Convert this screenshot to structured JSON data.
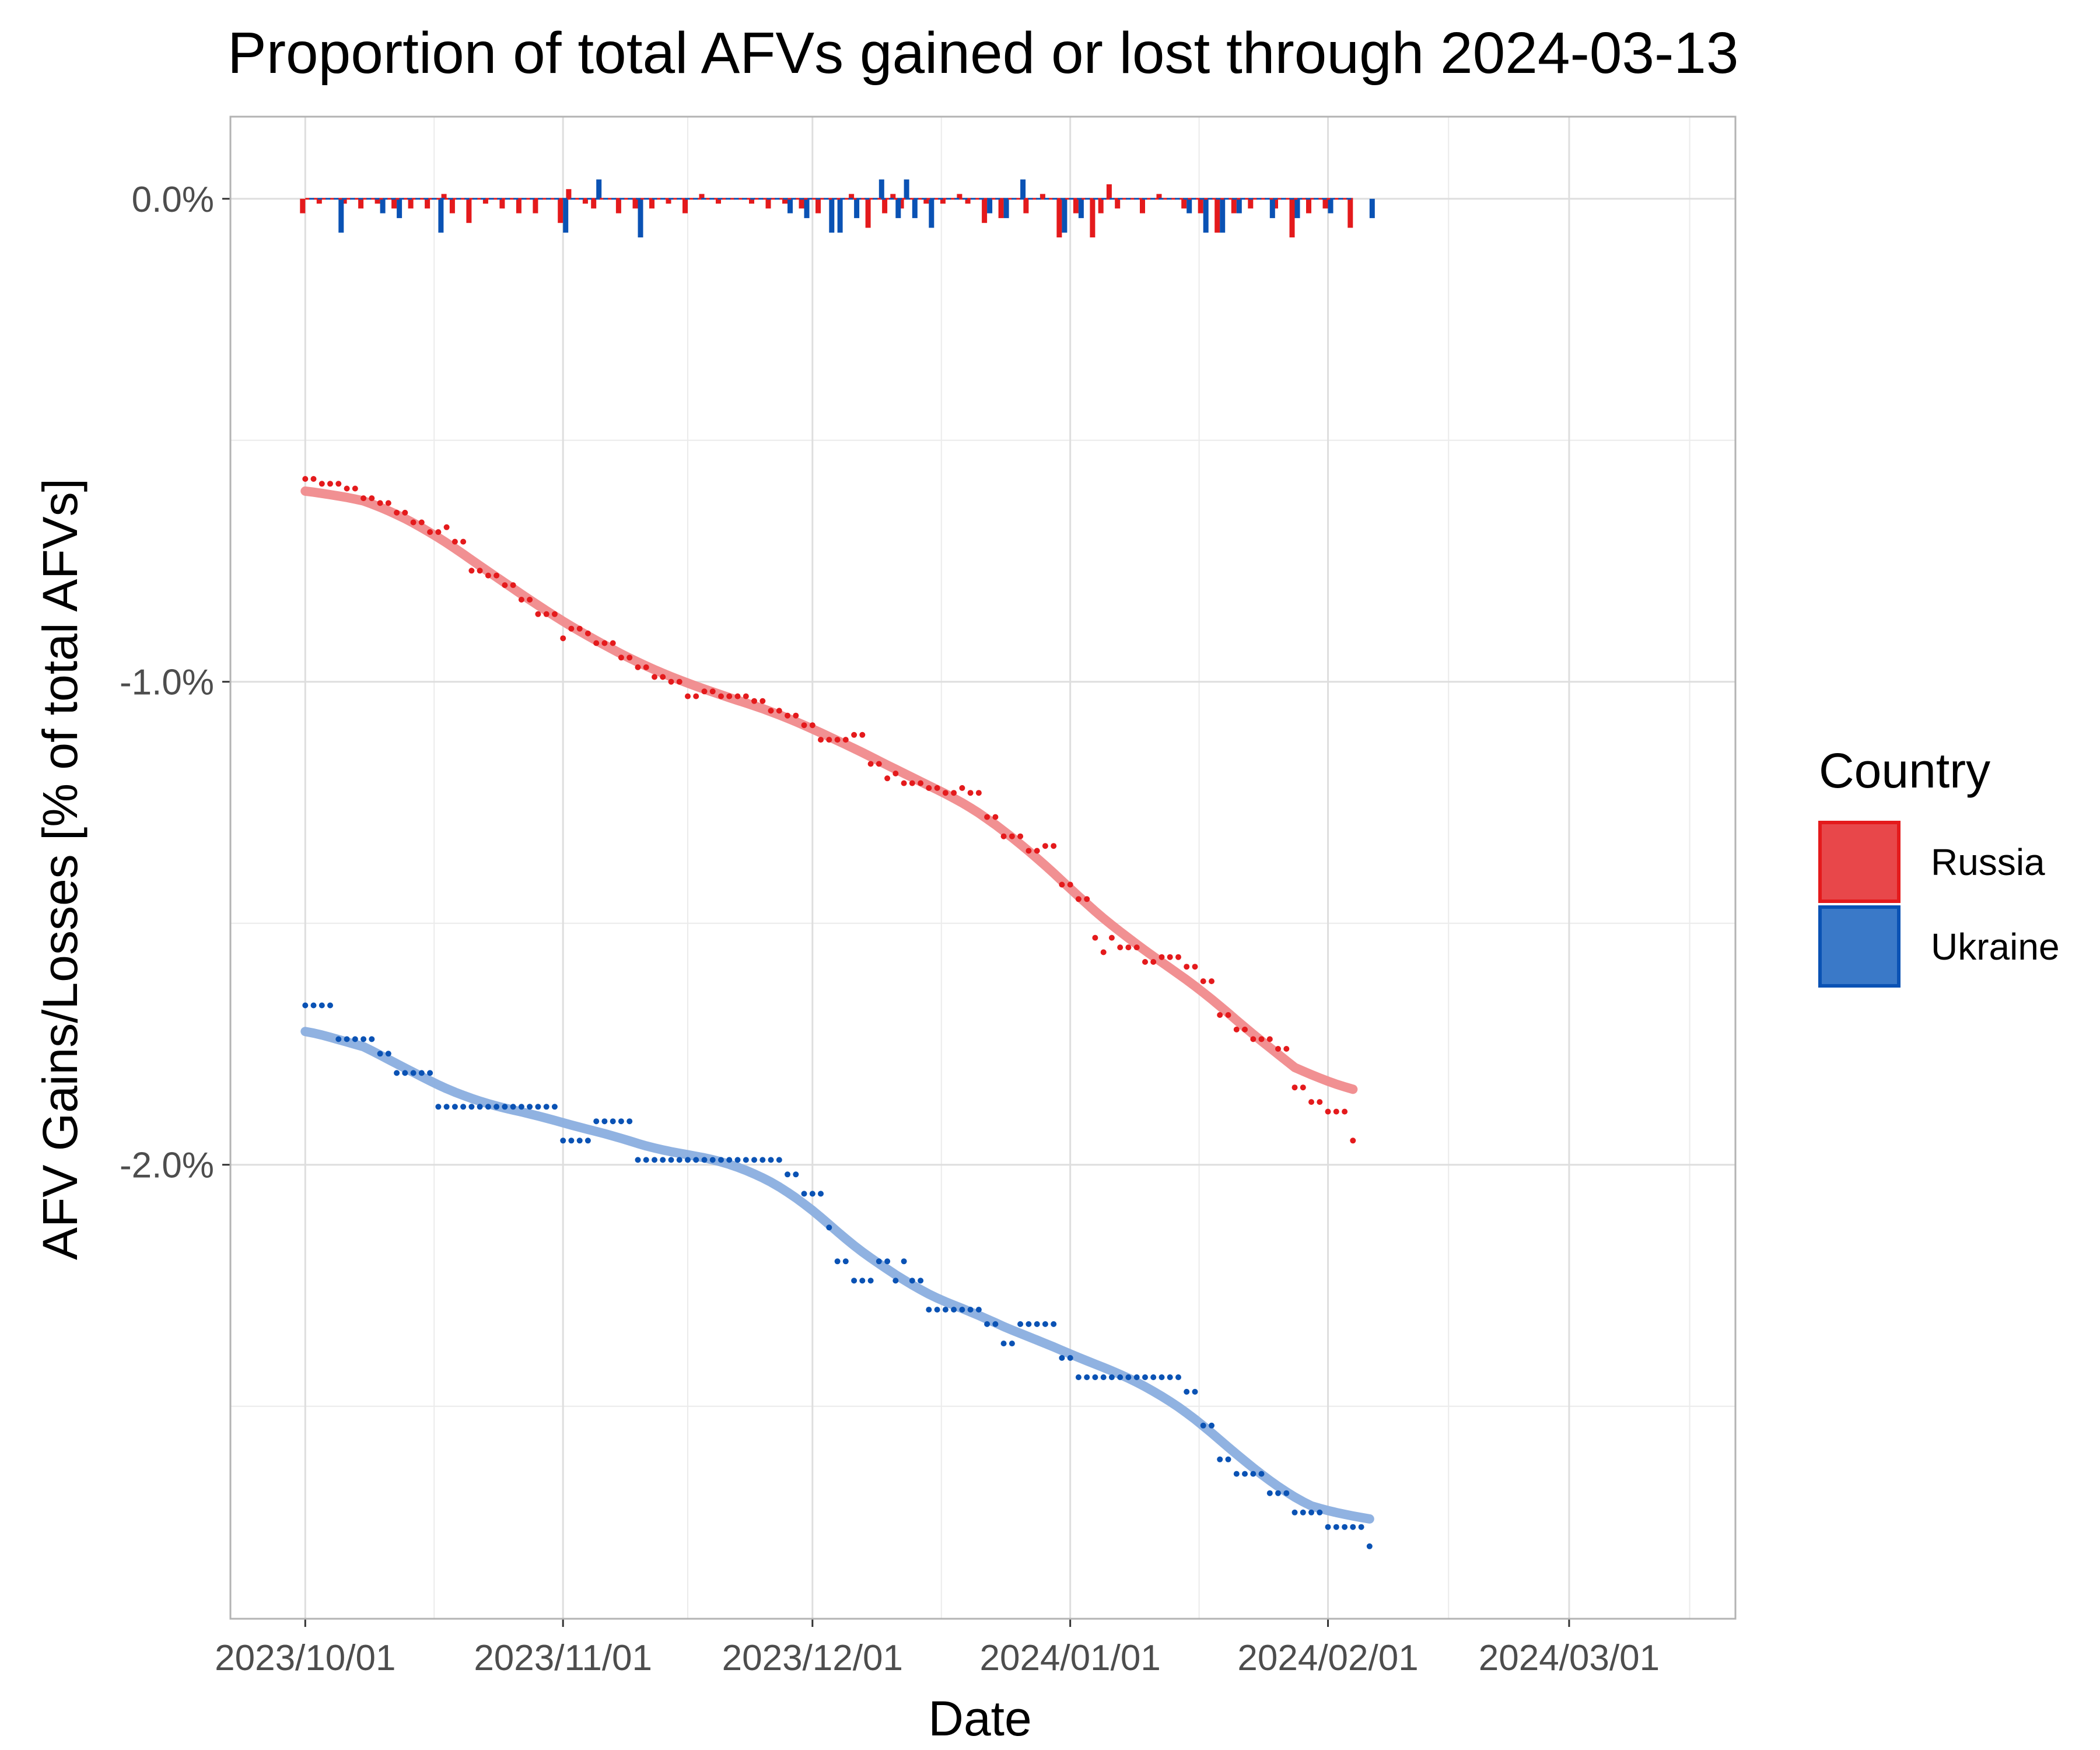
{
  "chart_data": {
    "type": "line",
    "title": "Proportion of total AFVs gained or lost through 2024-03-13",
    "xlabel": "Date",
    "ylabel": "AFV Gains/Losses [% of total AFVs]",
    "x_range": [
      "2023-09-22",
      "2024-03-21"
    ],
    "ylim": [
      -2.94,
      0.17
    ],
    "y_ticks": [
      0,
      -1,
      -2
    ],
    "y_tick_labels": [
      "0.0%",
      "-1.0%",
      "-2.0%"
    ],
    "x_ticks": [
      "2023-10-01",
      "2023-11-01",
      "2023-12-01",
      "2024-01-01",
      "2024-02-01",
      "2024-03-01"
    ],
    "x_tick_labels": [
      "2023/10/01",
      "2023/11/01",
      "2023/12/01",
      "2024/01/01",
      "2024/02/01",
      "2024/03/01"
    ],
    "grid": true,
    "legend": {
      "title": "Country",
      "placement": "right"
    },
    "colors": {
      "Russia": "#e41a1c",
      "Ukraine": "#0a52b4",
      "Russia_fill": "#e8474a",
      "Ukraine_fill": "#3a79c8",
      "Russia_smooth": "#f08a8c",
      "Ukraine_smooth": "#8aaedf"
    },
    "start_date": "2023-10-01",
    "series": [
      {
        "name": "Russia",
        "cumulative": [
          -0.58,
          -0.58,
          -0.59,
          -0.59,
          -0.59,
          -0.6,
          -0.6,
          -0.62,
          -0.62,
          -0.63,
          -0.63,
          -0.65,
          -0.65,
          -0.67,
          -0.67,
          -0.69,
          -0.69,
          -0.68,
          -0.71,
          -0.71,
          -0.77,
          -0.77,
          -0.78,
          -0.78,
          -0.8,
          -0.8,
          -0.83,
          -0.83,
          -0.86,
          -0.86,
          -0.86,
          -0.91,
          -0.89,
          -0.89,
          -0.9,
          -0.92,
          -0.92,
          -0.92,
          -0.95,
          -0.95,
          -0.97,
          -0.97,
          -0.99,
          -0.99,
          -1.0,
          -1.0,
          -1.03,
          -1.03,
          -1.02,
          -1.02,
          -1.03,
          -1.03,
          -1.03,
          -1.03,
          -1.04,
          -1.04,
          -1.06,
          -1.06,
          -1.07,
          -1.07,
          -1.09,
          -1.09,
          -1.12,
          -1.12,
          -1.12,
          -1.12,
          -1.11,
          -1.11,
          -1.17,
          -1.17,
          -1.2,
          -1.19,
          -1.21,
          -1.21,
          -1.21,
          -1.22,
          -1.22,
          -1.23,
          -1.23,
          -1.22,
          -1.23,
          -1.23,
          -1.28,
          -1.28,
          -1.32,
          -1.32,
          -1.32,
          -1.35,
          -1.35,
          -1.34,
          -1.34,
          -1.42,
          -1.42,
          -1.45,
          -1.45,
          -1.53,
          -1.56,
          -1.53,
          -1.55,
          -1.55,
          -1.55,
          -1.58,
          -1.58,
          -1.57,
          -1.57,
          -1.57,
          -1.59,
          -1.59,
          -1.62,
          -1.62,
          -1.69,
          -1.69,
          -1.72,
          -1.72,
          -1.74,
          -1.74,
          -1.74,
          -1.76,
          -1.76,
          -1.84,
          -1.84,
          -1.87,
          -1.87,
          -1.89,
          -1.89,
          -1.89,
          -1.95
        ],
        "daily": [
          -0.03,
          0,
          -0.01,
          0,
          0,
          -0.01,
          0,
          -0.02,
          0,
          -0.01,
          0,
          -0.02,
          0,
          -0.02,
          0,
          -0.02,
          0,
          0.01,
          -0.03,
          0,
          -0.05,
          0,
          -0.01,
          0,
          -0.02,
          0,
          -0.03,
          0,
          -0.03,
          0,
          0,
          -0.05,
          0.02,
          0,
          -0.01,
          -0.02,
          0,
          0,
          -0.03,
          0,
          -0.02,
          0,
          -0.02,
          0,
          -0.01,
          0,
          -0.03,
          0,
          0.01,
          0,
          -0.01,
          0,
          0,
          0,
          -0.01,
          0,
          -0.02,
          0,
          -0.01,
          0,
          -0.02,
          0,
          -0.03,
          0,
          0,
          0,
          0.01,
          0,
          -0.06,
          0,
          -0.03,
          0.01,
          -0.02,
          0,
          0,
          -0.01,
          0,
          -0.01,
          0,
          0.01,
          -0.01,
          0,
          -0.05,
          0,
          -0.04,
          0,
          0,
          -0.03,
          0,
          0.01,
          0,
          -0.08,
          0,
          -0.03,
          0,
          -0.08,
          -0.03,
          0.03,
          -0.02,
          0,
          0,
          -0.03,
          0,
          0.01,
          0,
          0,
          -0.02,
          0,
          -0.03,
          0,
          -0.07,
          0,
          -0.03,
          0,
          -0.02,
          0,
          0,
          -0.02,
          0,
          -0.08,
          0,
          -0.03,
          0,
          -0.02,
          0,
          0,
          -0.06
        ]
      },
      {
        "name": "Ukraine",
        "cumulative": [
          -1.67,
          -1.67,
          -1.67,
          -1.67,
          -1.74,
          -1.74,
          -1.74,
          -1.74,
          -1.74,
          -1.77,
          -1.77,
          -1.81,
          -1.81,
          -1.81,
          -1.81,
          -1.81,
          -1.88,
          -1.88,
          -1.88,
          -1.88,
          -1.88,
          -1.88,
          -1.88,
          -1.88,
          -1.88,
          -1.88,
          -1.88,
          -1.88,
          -1.88,
          -1.88,
          -1.88,
          -1.95,
          -1.95,
          -1.95,
          -1.95,
          -1.91,
          -1.91,
          -1.91,
          -1.91,
          -1.91,
          -1.99,
          -1.99,
          -1.99,
          -1.99,
          -1.99,
          -1.99,
          -1.99,
          -1.99,
          -1.99,
          -1.99,
          -1.99,
          -1.99,
          -1.99,
          -1.99,
          -1.99,
          -1.99,
          -1.99,
          -1.99,
          -2.02,
          -2.02,
          -2.06,
          -2.06,
          -2.06,
          -2.13,
          -2.2,
          -2.2,
          -2.24,
          -2.24,
          -2.24,
          -2.2,
          -2.2,
          -2.24,
          -2.2,
          -2.24,
          -2.24,
          -2.3,
          -2.3,
          -2.3,
          -2.3,
          -2.3,
          -2.3,
          -2.3,
          -2.33,
          -2.33,
          -2.37,
          -2.37,
          -2.33,
          -2.33,
          -2.33,
          -2.33,
          -2.33,
          -2.4,
          -2.4,
          -2.44,
          -2.44,
          -2.44,
          -2.44,
          -2.44,
          -2.44,
          -2.44,
          -2.44,
          -2.44,
          -2.44,
          -2.44,
          -2.44,
          -2.44,
          -2.47,
          -2.47,
          -2.54,
          -2.54,
          -2.61,
          -2.61,
          -2.64,
          -2.64,
          -2.64,
          -2.64,
          -2.68,
          -2.68,
          -2.68,
          -2.72,
          -2.72,
          -2.72,
          -2.72,
          -2.75,
          -2.75,
          -2.75,
          -2.75,
          -2.75,
          -2.79
        ],
        "daily": [
          0,
          0,
          0,
          0,
          -0.07,
          0,
          0,
          0,
          0,
          -0.03,
          0,
          -0.04,
          0,
          0,
          0,
          0,
          -0.07,
          0,
          0,
          0,
          0,
          0,
          0,
          0,
          0,
          0,
          0,
          0,
          0,
          0,
          0,
          -0.07,
          0,
          0,
          0,
          0.04,
          0,
          0,
          0,
          0,
          -0.08,
          0,
          0,
          0,
          0,
          0,
          0,
          0,
          0,
          0,
          0,
          0,
          0,
          0,
          0,
          0,
          0,
          0,
          -0.03,
          0,
          -0.04,
          0,
          0,
          -0.07,
          -0.07,
          0,
          -0.04,
          0,
          0,
          0.04,
          0,
          -0.04,
          0.04,
          -0.04,
          0,
          -0.06,
          0,
          0,
          0,
          0,
          0,
          0,
          -0.03,
          0,
          -0.04,
          0,
          0.04,
          0,
          0,
          0,
          0,
          -0.07,
          0,
          -0.04,
          0,
          0,
          0,
          0,
          0,
          0,
          0,
          0,
          0,
          0,
          0,
          0,
          -0.03,
          0,
          -0.07,
          0,
          -0.07,
          0,
          -0.03,
          0,
          0,
          0,
          -0.04,
          0,
          0,
          -0.04,
          0,
          0,
          0,
          -0.03,
          0,
          0,
          0,
          0,
          -0.04
        ]
      }
    ]
  }
}
